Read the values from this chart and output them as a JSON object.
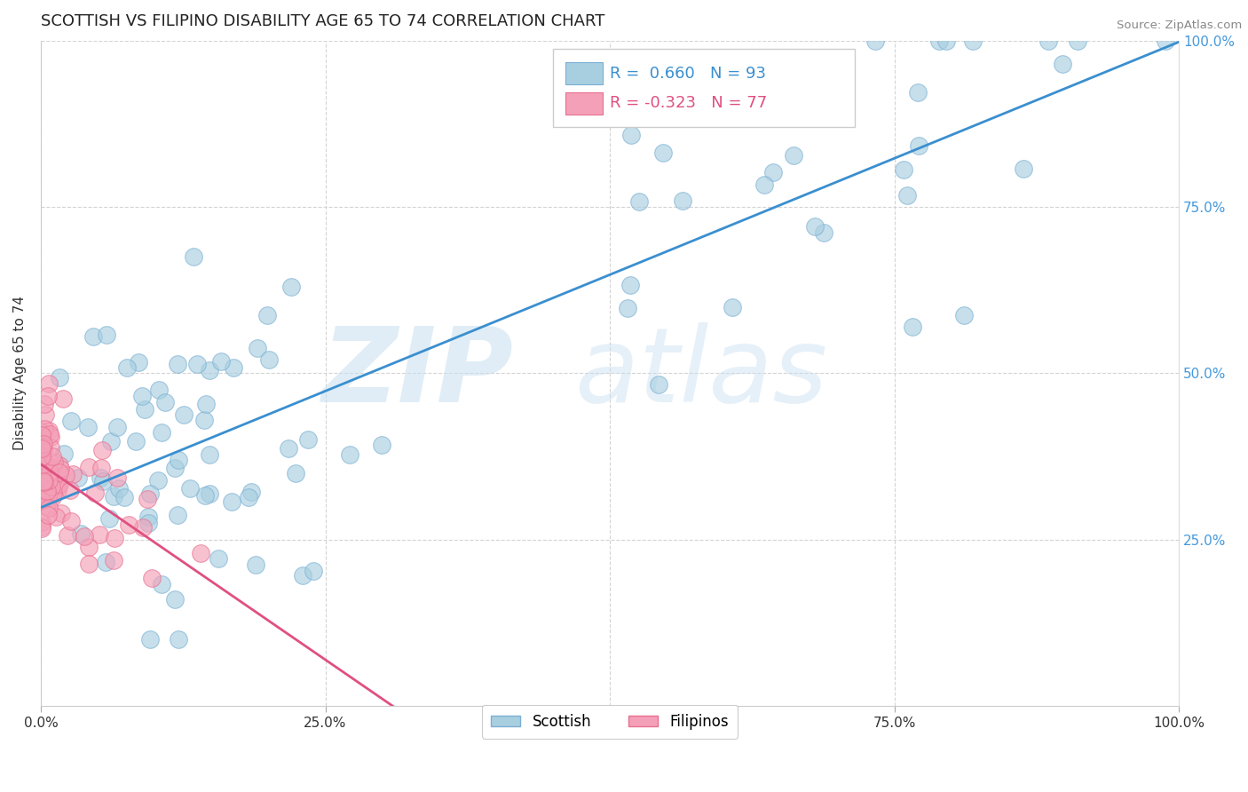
{
  "title": "SCOTTISH VS FILIPINO DISABILITY AGE 65 TO 74 CORRELATION CHART",
  "source_text": "Source: ZipAtlas.com",
  "ylabel": "Disability Age 65 to 74",
  "xlim": [
    0.0,
    1.0
  ],
  "ylim": [
    0.0,
    1.0
  ],
  "xtick_labels": [
    "0.0%",
    "25.0%",
    "50.0%",
    "75.0%",
    "100.0%"
  ],
  "xtick_vals": [
    0.0,
    0.25,
    0.5,
    0.75,
    1.0
  ],
  "ytick_labels": [
    "25.0%",
    "50.0%",
    "75.0%",
    "100.0%"
  ],
  "ytick_vals": [
    0.25,
    0.5,
    0.75,
    1.0
  ],
  "scottish_face_color": "#a8cfe0",
  "scottish_edge_color": "#7bafd4",
  "filipino_face_color": "#f4a0b8",
  "filipino_edge_color": "#e8708f",
  "scottish_line_color": "#3a8fcf",
  "filipino_line_color": "#e05080",
  "R_scottish": 0.66,
  "N_scottish": 93,
  "R_filipino": -0.323,
  "N_filipino": 77,
  "legend_label_scottish": "Scottish",
  "legend_label_filipino": "Filipinos",
  "watermark_zip": "ZIP",
  "watermark_atlas": "atlas",
  "background_color": "#ffffff",
  "title_fontsize": 13,
  "axis_fontsize": 11,
  "right_tick_color": "#4499dd"
}
